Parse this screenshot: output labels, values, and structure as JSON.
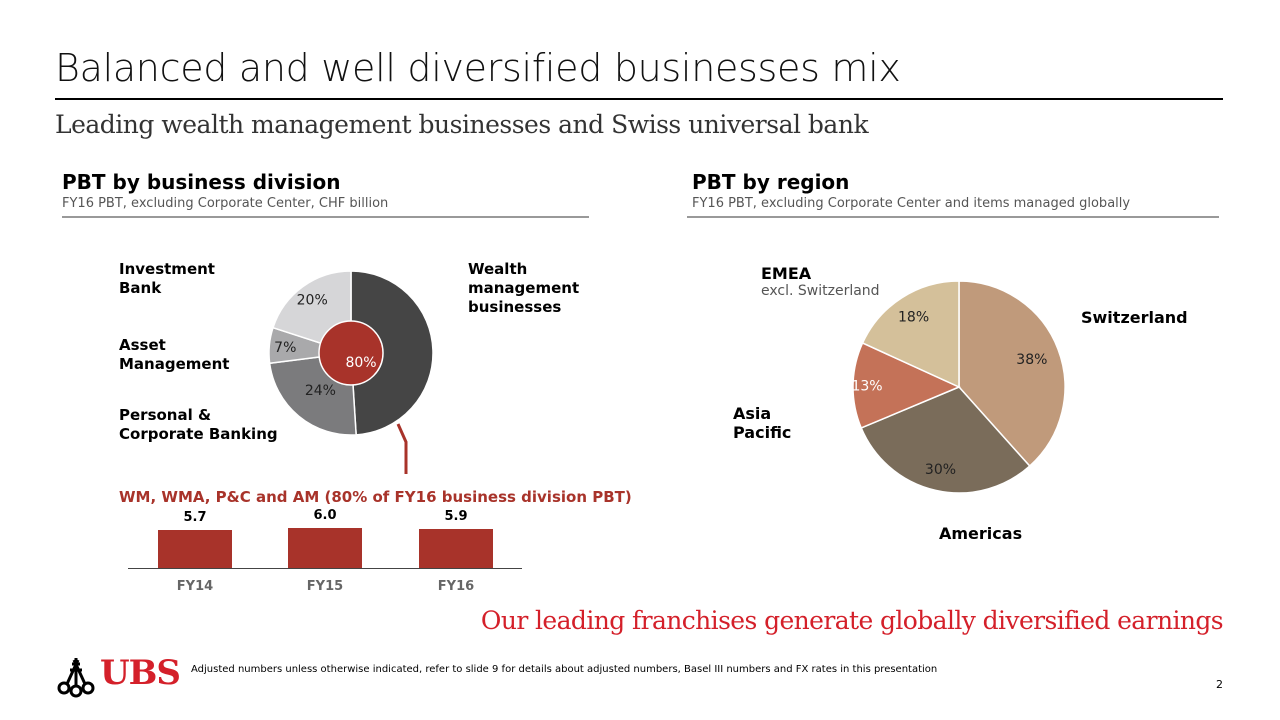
{
  "header": {
    "title": "Balanced and well diversified businesses mix",
    "subtitle": "Leading wealth management businesses and Swiss universal bank"
  },
  "left_section": {
    "title": "PBT by business division",
    "subtitle": "FY16 PBT, excluding Corporate Center, CHF billion",
    "labels": {
      "investment_bank": "Investment Bank",
      "asset_management": "Asset Management",
      "personal_corporate": "Personal & Corporate Banking",
      "wealth_management": "Wealth management businesses"
    }
  },
  "right_section": {
    "title": "PBT by region",
    "subtitle": "FY16 PBT, excluding Corporate Center and items managed globally",
    "labels": {
      "emea": "EMEA",
      "emea_note": "excl. Switzerland",
      "switzerland": "Switzerland",
      "asia_pacific": "Asia Pacific",
      "americas": "Americas"
    }
  },
  "chart_data": [
    {
      "type": "pie",
      "title": "PBT by business division",
      "slices": [
        {
          "label": "Wealth management businesses",
          "value": 49,
          "display": "49%",
          "color": "#454545"
        },
        {
          "label": "Personal & Corporate Banking",
          "value": 24,
          "display": "24%",
          "color": "#7b7b7d"
        },
        {
          "label": "Asset Management",
          "value": 7,
          "display": "7%",
          "color": "#a9a9ab"
        },
        {
          "label": "Investment Bank",
          "value": 20,
          "display": "20%",
          "color": "#d6d6d8"
        }
      ],
      "inner": {
        "value": 80,
        "display": "80%",
        "color": "#a8332a"
      }
    },
    {
      "type": "pie",
      "title": "PBT by region",
      "slices": [
        {
          "label": "Switzerland",
          "value": 38,
          "display": "38%",
          "color": "#c09a7b"
        },
        {
          "label": "Americas",
          "value": 30,
          "display": "30%",
          "color": "#7a6c5a"
        },
        {
          "label": "Asia Pacific",
          "value": 13,
          "display": "13%",
          "color": "#c47258"
        },
        {
          "label": "EMEA",
          "value": 18,
          "display": "18%",
          "color": "#d4c09a"
        }
      ]
    },
    {
      "type": "bar",
      "title": "WM, WMA, P&C and AM (80% of FY16 business division PBT)",
      "categories": [
        "FY14",
        "FY15",
        "FY16"
      ],
      "values": [
        5.7,
        6.0,
        5.9
      ],
      "display": [
        "5.7",
        "6.0",
        "5.9"
      ],
      "color": "#a8332a"
    }
  ],
  "tagline": "Our leading franchises generate globally diversified earnings",
  "footer": {
    "logo": "UBS",
    "note": "Adjusted numbers unless otherwise indicated, refer to slide 9 for details about adjusted numbers, Basel III numbers and FX rates in this presentation",
    "page": "2"
  },
  "colors": {
    "brand_red": "#d4202a",
    "accent_red": "#a8332a"
  }
}
